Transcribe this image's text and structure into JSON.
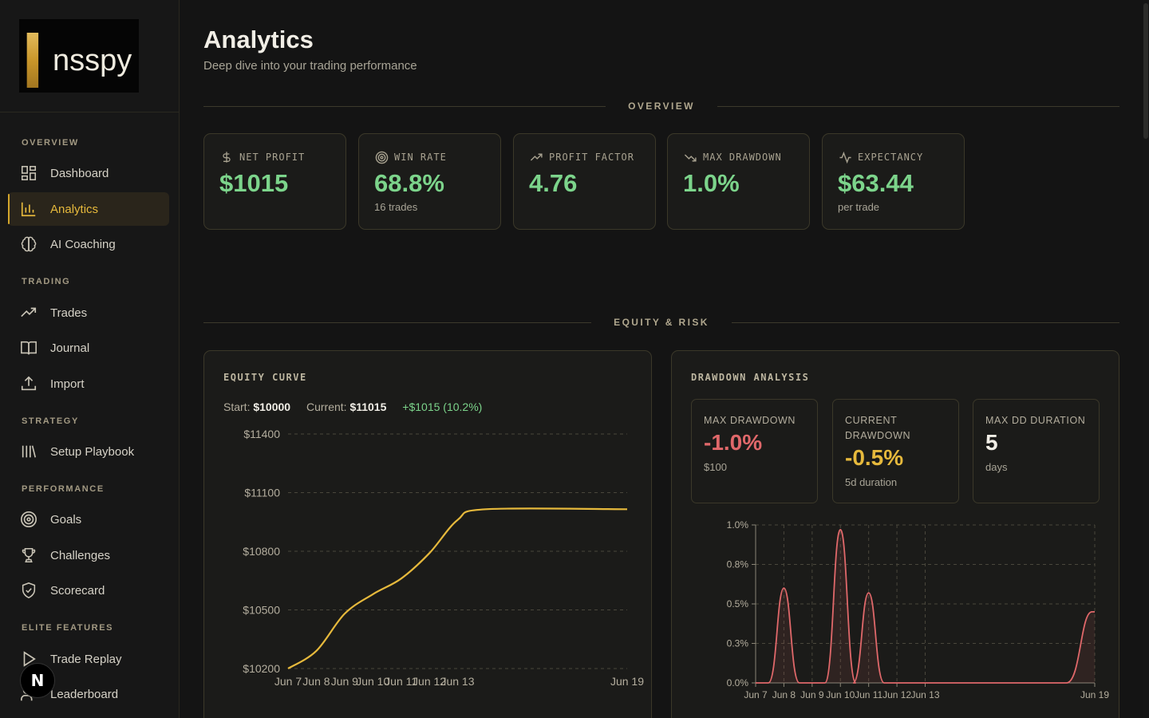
{
  "brand": {
    "name": "Insspy",
    "logo_initial": "I",
    "logo_rest": "nsspy"
  },
  "sidebar": {
    "sections": [
      {
        "label": "OVERVIEW"
      },
      {
        "label": "TRADING"
      },
      {
        "label": "STRATEGY"
      },
      {
        "label": "PERFORMANCE"
      },
      {
        "label": "ELITE FEATURES"
      }
    ],
    "items": [
      {
        "label": "Dashboard",
        "icon": "grid-icon"
      },
      {
        "label": "Analytics",
        "icon": "bar-chart-icon",
        "active": true
      },
      {
        "label": "AI Coaching",
        "icon": "brain-icon"
      },
      {
        "label": "Trades",
        "icon": "trending-up-icon"
      },
      {
        "label": "Journal",
        "icon": "book-icon"
      },
      {
        "label": "Import",
        "icon": "upload-icon"
      },
      {
        "label": "Setup Playbook",
        "icon": "library-icon"
      },
      {
        "label": "Goals",
        "icon": "target-icon"
      },
      {
        "label": "Challenges",
        "icon": "trophy-icon"
      },
      {
        "label": "Scorecard",
        "icon": "shield-check-icon"
      },
      {
        "label": "Trade Replay",
        "icon": "play-icon"
      },
      {
        "label": "Leaderboard",
        "icon": "users-icon"
      }
    ],
    "badge": "N"
  },
  "header": {
    "title": "Analytics",
    "subtitle": "Deep dive into your trading performance"
  },
  "sections": {
    "overview": "OVERVIEW",
    "equity_risk": "EQUITY & RISK"
  },
  "kpis": [
    {
      "label": "NET PROFIT",
      "value": "$1015",
      "sub": "",
      "icon": "dollar-icon"
    },
    {
      "label": "WIN RATE",
      "value": "68.8%",
      "sub": "16 trades",
      "icon": "target-icon"
    },
    {
      "label": "PROFIT FACTOR",
      "value": "4.76",
      "sub": "",
      "icon": "trending-up-icon"
    },
    {
      "label": "MAX DRAWDOWN",
      "value": "1.0%",
      "sub": "",
      "icon": "trending-down-icon"
    },
    {
      "label": "EXPECTANCY",
      "value": "$63.44",
      "sub": "per trade",
      "icon": "activity-icon"
    }
  ],
  "equity": {
    "title": "EQUITY CURVE",
    "start_label": "Start:",
    "start_value": "$10000",
    "current_label": "Current:",
    "current_value": "$11015",
    "gain": "+$1015 (10.2%)"
  },
  "drawdown": {
    "title": "DRAWDOWN ANALYSIS",
    "cards": [
      {
        "label": "MAX DRAWDOWN",
        "value": "-1.0%",
        "sub": "$100"
      },
      {
        "label": "CURRENT DRAWDOWN",
        "value": "-0.5%",
        "sub": "5d duration"
      },
      {
        "label": "MAX DD DURATION",
        "value": "5",
        "sub": "days"
      }
    ]
  },
  "colors": {
    "accent": "#d4a72c",
    "profit": "#7cd48b",
    "loss": "#e0686a",
    "warning": "#e6b93c",
    "equity_line": "#e6b93c"
  },
  "chart_data": [
    {
      "type": "line",
      "title": "EQUITY CURVE",
      "x": [
        "Jun 7",
        "Jun 8",
        "Jun 9",
        "Jun 10",
        "Jun 11",
        "Jun 12",
        "Jun 13",
        "Jun 14",
        "Jun 19"
      ],
      "x_tick_labels": [
        "Jun 7",
        "Jun 8",
        "Jun 9",
        "Jun 10",
        "Jun 11",
        "Jun 12",
        "Jun 13",
        "Jun 19"
      ],
      "values": [
        10200,
        10290,
        10480,
        10580,
        10660,
        10790,
        10960,
        11015,
        11015
      ],
      "y_tick_labels": [
        "$10200",
        "$10500",
        "$10800",
        "$11100",
        "$11400"
      ],
      "ylim": [
        10200,
        11400
      ],
      "grid": true
    },
    {
      "type": "area",
      "title": "DRAWDOWN ANALYSIS",
      "x_tick_labels": [
        "Jun 7",
        "Jun 8",
        "Jun 9",
        "Jun 10",
        "Jun 11",
        "Jun 12",
        "Jun 13",
        "Jun 19"
      ],
      "y_tick_labels": [
        "0.0%",
        "0.3%",
        "0.5%",
        "0.8%",
        "1.0%"
      ],
      "ylim": [
        0,
        1.0
      ],
      "peaks": [
        {
          "x": "Jun 8",
          "value": 0.6
        },
        {
          "x": "Jun 10",
          "value": 0.97
        },
        {
          "x": "Jun 11",
          "value": 0.57
        },
        {
          "x": "Jun 19",
          "value": 0.45
        }
      ],
      "grid": true
    }
  ]
}
